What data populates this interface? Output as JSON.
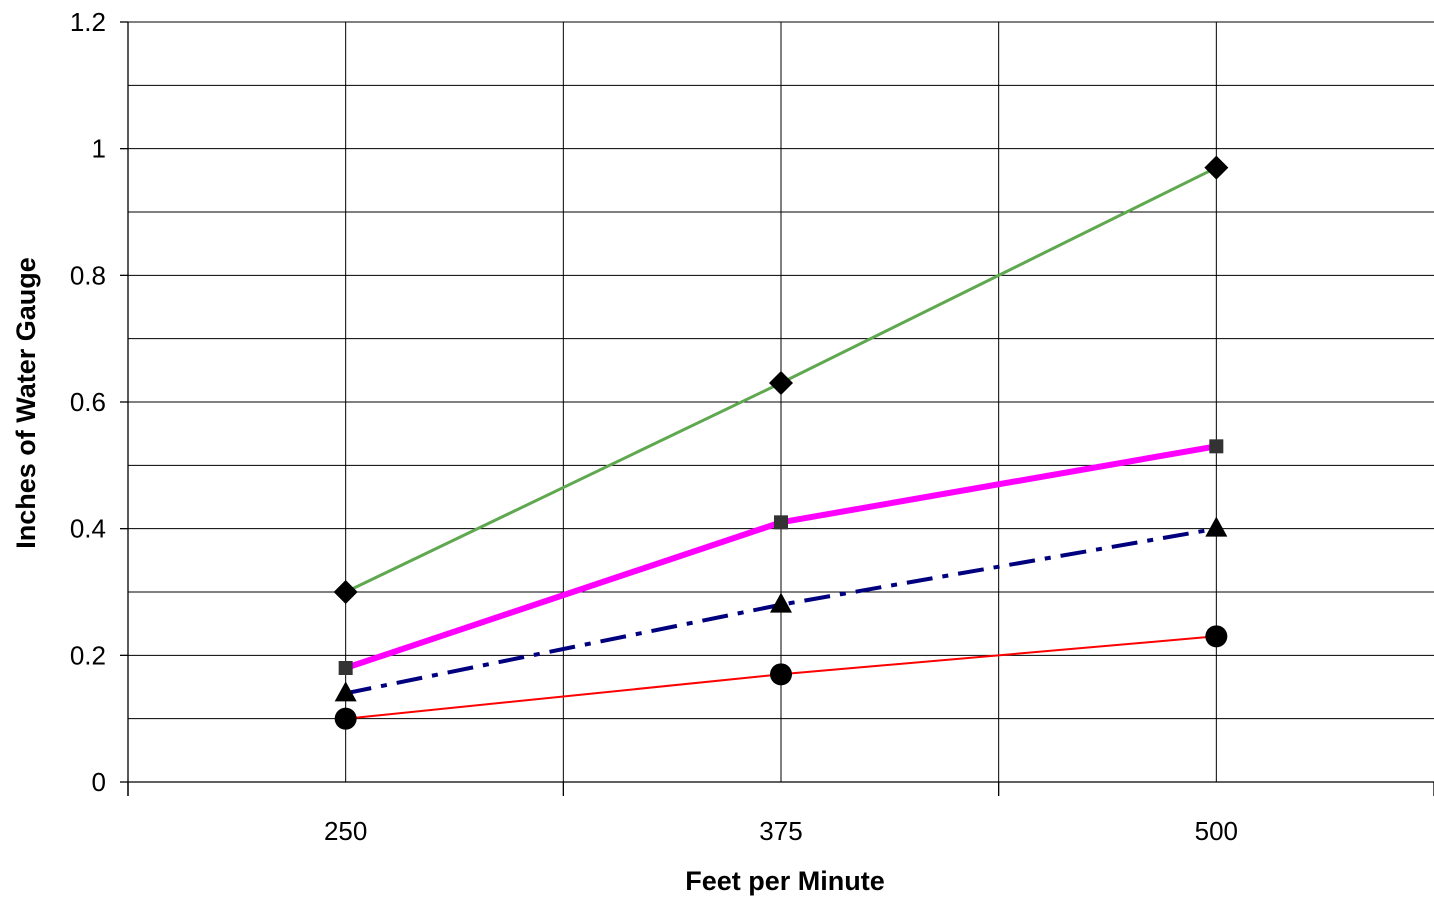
{
  "chart_data": {
    "type": "line",
    "title": "",
    "xlabel": "Feet per Minute",
    "ylabel": "Inches of Water Gauge",
    "categories": [
      "250",
      "375",
      "500"
    ],
    "ylim": [
      0,
      1.2
    ],
    "yticks": [
      "0",
      "0.2",
      "0.4",
      "0.6",
      "0.8",
      "1",
      "1.2"
    ],
    "grid": true,
    "legend": "none",
    "series": [
      {
        "color": "#5fa84f",
        "line_style": "solid",
        "marker": "diamond",
        "values": [
          0.3,
          0.63,
          0.97
        ]
      },
      {
        "color": "#ff00ff",
        "line_style": "solid",
        "marker": "square",
        "values": [
          0.18,
          0.41,
          0.53
        ]
      },
      {
        "color": "#00007f",
        "line_style": "dash-dot",
        "marker": "triangle",
        "values": [
          0.14,
          0.28,
          0.4
        ]
      },
      {
        "color": "#ff0000",
        "line_style": "solid",
        "marker": "circle",
        "values": [
          0.1,
          0.17,
          0.23
        ]
      }
    ]
  }
}
